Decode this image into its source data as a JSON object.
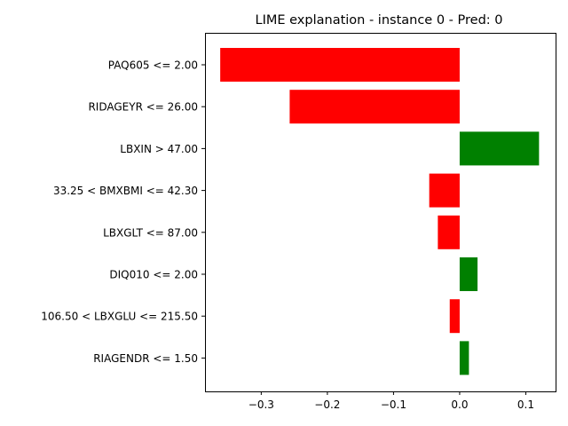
{
  "chart_data": {
    "type": "bar",
    "orientation": "horizontal",
    "title": "LIME explanation - instance 0 - Pred: 0",
    "xlabel": "",
    "ylabel": "",
    "categories": [
      "PAQ605 <= 2.00",
      "RIDAGEYR <= 26.00",
      "LBXIN > 47.00",
      "33.25 < BMXBMI <= 42.30",
      "LBXGLT <= 87.00",
      "DIQ010 <= 2.00",
      "106.50 < LBXGLU <= 215.50",
      "RIAGENDR <= 1.50"
    ],
    "values": [
      -0.362,
      -0.257,
      0.12,
      -0.046,
      -0.033,
      0.027,
      -0.015,
      0.014
    ],
    "xlim": [
      -0.385,
      0.145
    ],
    "xticks": [
      -0.3,
      -0.2,
      -0.1,
      0.0,
      0.1
    ],
    "xtick_labels": [
      "−0.3",
      "−0.2",
      "−0.1",
      "0.0",
      "0.1"
    ],
    "colors": {
      "positive": "#008000",
      "negative": "#ff0000"
    },
    "grid": false,
    "legend": "none"
  }
}
